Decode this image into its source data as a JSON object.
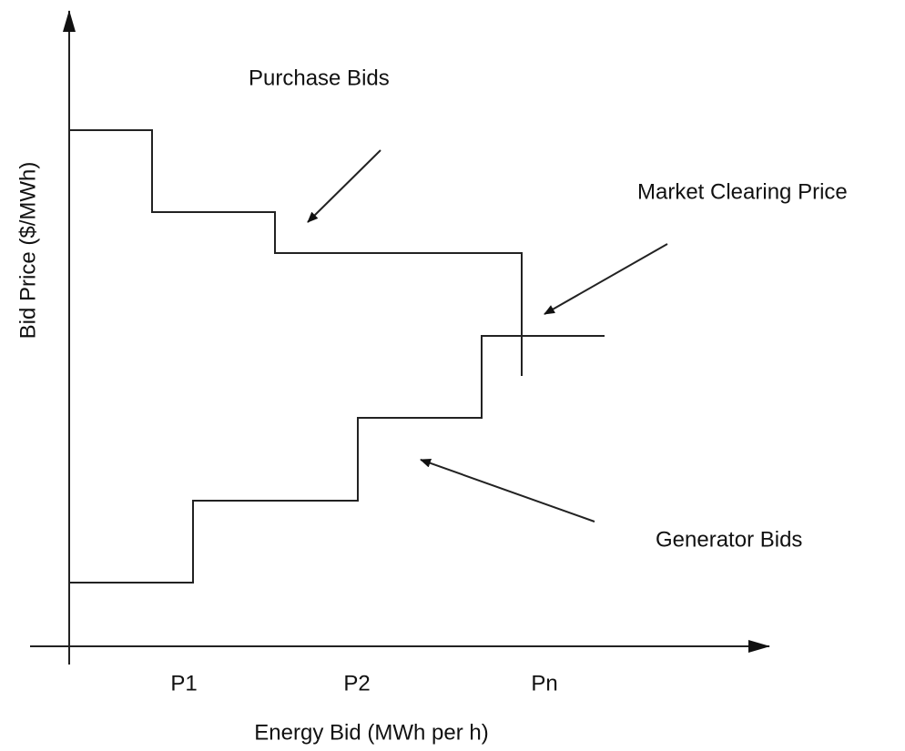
{
  "labels": {
    "purchase_bids": "Purchase Bids",
    "market_clearing_price": "Market Clearing Price",
    "generator_bids": "Generator Bids"
  },
  "axes": {
    "y_label": "Bid Price ($/MWh)",
    "x_label": "Energy Bid (MWh per h)",
    "x_markers": [
      "P1",
      "P2",
      "Pn"
    ]
  }
}
